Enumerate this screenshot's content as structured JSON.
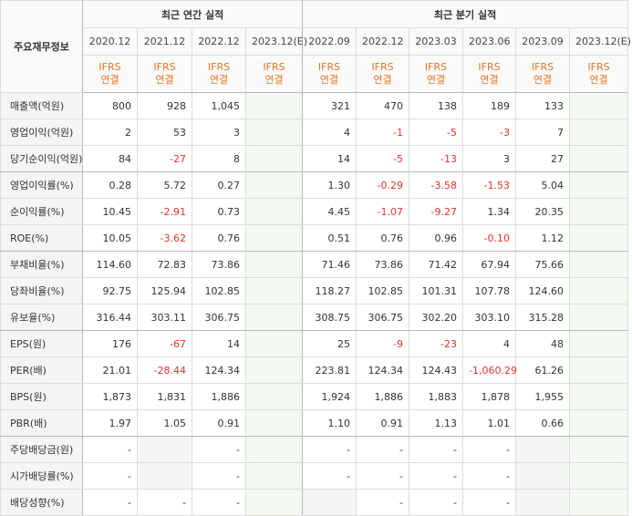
{
  "header": {
    "row_label": "주요재무정보",
    "annual_title": "최근 연간 실적",
    "quarter_title": "최근 분기 실적"
  },
  "periods": [
    {
      "label": "2020.12",
      "basis1": "IFRS",
      "basis2": "연결"
    },
    {
      "label": "2021.12",
      "basis1": "IFRS",
      "basis2": "연결"
    },
    {
      "label": "2022.12",
      "basis1": "IFRS",
      "basis2": "연결"
    },
    {
      "label": "2023.12(E)",
      "basis1": "IFRS",
      "basis2": "연결"
    },
    {
      "label": "2022.09",
      "basis1": "IFRS",
      "basis2": "연결"
    },
    {
      "label": "2022.12",
      "basis1": "IFRS",
      "basis2": "연결"
    },
    {
      "label": "2023.03",
      "basis1": "IFRS",
      "basis2": "연결"
    },
    {
      "label": "2023.06",
      "basis1": "IFRS",
      "basis2": "연결"
    },
    {
      "label": "2023.09",
      "basis1": "IFRS",
      "basis2": "연결"
    },
    {
      "label": "2023.12(E)",
      "basis1": "IFRS",
      "basis2": "연결"
    }
  ],
  "rows": [
    {
      "label": "매출액(억원)",
      "values": [
        "800",
        "928",
        "1,045",
        "",
        "321",
        "470",
        "138",
        "189",
        "133",
        ""
      ]
    },
    {
      "label": "영업이익(억원)",
      "values": [
        "2",
        "53",
        "3",
        "",
        "4",
        "-1",
        "-5",
        "-3",
        "7",
        ""
      ]
    },
    {
      "label": "당기순이익(억원)",
      "values": [
        "84",
        "-27",
        "8",
        "",
        "14",
        "-5",
        "-13",
        "3",
        "27",
        ""
      ]
    },
    {
      "label": "영업이익률(%)",
      "values": [
        "0.28",
        "5.72",
        "0.27",
        "",
        "1.30",
        "-0.29",
        "-3.58",
        "-1.53",
        "5.04",
        ""
      ]
    },
    {
      "label": "순이익률(%)",
      "values": [
        "10.45",
        "-2.91",
        "0.73",
        "",
        "4.45",
        "-1.07",
        "-9.27",
        "1.34",
        "20.35",
        ""
      ]
    },
    {
      "label": "ROE(%)",
      "values": [
        "10.05",
        "-3.62",
        "0.76",
        "",
        "0.51",
        "0.76",
        "0.96",
        "-0.10",
        "1.12",
        ""
      ]
    },
    {
      "label": "부채비율(%)",
      "values": [
        "114.60",
        "72.83",
        "73.86",
        "",
        "71.46",
        "73.86",
        "71.42",
        "67.94",
        "75.66",
        ""
      ]
    },
    {
      "label": "당좌비율(%)",
      "values": [
        "92.75",
        "125.94",
        "102.85",
        "",
        "118.27",
        "102.85",
        "101.31",
        "107.78",
        "124.60",
        ""
      ]
    },
    {
      "label": "유보율(%)",
      "values": [
        "316.44",
        "303.11",
        "306.75",
        "",
        "308.75",
        "306.75",
        "302.20",
        "303.10",
        "315.28",
        ""
      ]
    },
    {
      "label": "EPS(원)",
      "values": [
        "176",
        "-67",
        "14",
        "",
        "25",
        "-9",
        "-23",
        "4",
        "48",
        ""
      ]
    },
    {
      "label": "PER(배)",
      "values": [
        "21.01",
        "-28.44",
        "124.34",
        "",
        "223.81",
        "124.34",
        "124.43",
        "-1,060.29",
        "61.26",
        ""
      ]
    },
    {
      "label": "BPS(원)",
      "values": [
        "1,873",
        "1,831",
        "1,886",
        "",
        "1,924",
        "1,886",
        "1,883",
        "1,878",
        "1,955",
        ""
      ]
    },
    {
      "label": "PBR(배)",
      "values": [
        "1.97",
        "1.05",
        "0.91",
        "",
        "1.10",
        "0.91",
        "1.13",
        "1.01",
        "0.66",
        ""
      ]
    },
    {
      "label": "주당배당금(원)",
      "values": [
        "-",
        "",
        "-",
        "",
        "-",
        "-",
        "-",
        "-",
        "",
        ""
      ]
    },
    {
      "label": "시가배당률(%)",
      "values": [
        "-",
        "",
        "-",
        "",
        "-",
        "-",
        "-",
        "-",
        "",
        ""
      ]
    },
    {
      "label": "배당성향(%)",
      "values": [
        "-",
        "-",
        "-",
        "",
        "",
        "-",
        "-",
        "-",
        "",
        ""
      ]
    }
  ]
}
